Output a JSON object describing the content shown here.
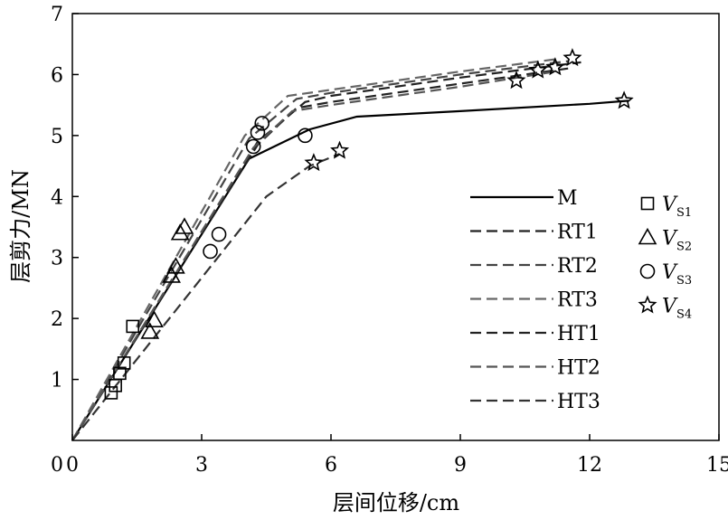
{
  "chart_data": {
    "type": "line",
    "xlabel": "层间位移/cm",
    "ylabel": "层剪力/MN",
    "xlim": [
      0,
      15
    ],
    "ylim": [
      0,
      7
    ],
    "xticks": [
      0,
      3,
      6,
      9,
      12,
      15
    ],
    "yticks": [
      1,
      2,
      3,
      4,
      5,
      6,
      7
    ],
    "y_origin_label": "0",
    "grid": false,
    "legend_position": "lower-right",
    "series": [
      {
        "name": "M",
        "style": "solid",
        "color": "#000000",
        "x": [
          0,
          4.1,
          5.5,
          6.6,
          9,
          12,
          12.9
        ],
        "y": [
          0,
          4.62,
          5.1,
          5.31,
          5.4,
          5.52,
          5.57
        ]
      },
      {
        "name": "RT1",
        "style": "dashed",
        "color": "#222222",
        "x": [
          0,
          4.3,
          5.4,
          6,
          9,
          11.8
        ],
        "y": [
          0,
          4.9,
          5.55,
          5.65,
          5.95,
          6.2
        ]
      },
      {
        "name": "RT2",
        "style": "dashed",
        "color": "#444444",
        "x": [
          0,
          4.1,
          5.2,
          6,
          9,
          11.5
        ],
        "y": [
          0,
          4.95,
          5.6,
          5.7,
          6.0,
          6.22
        ]
      },
      {
        "name": "RT3",
        "style": "dashed",
        "color": "#666666",
        "x": [
          0,
          4.0,
          5.0,
          6,
          9,
          11.2
        ],
        "y": [
          0,
          5.0,
          5.65,
          5.75,
          6.05,
          6.25
        ]
      },
      {
        "name": "HT1",
        "style": "dashed",
        "color": "#222222",
        "x": [
          0,
          4.3,
          5.2,
          6,
          9,
          11.5
        ],
        "y": [
          0,
          4.85,
          5.45,
          5.55,
          5.85,
          6.1
        ]
      },
      {
        "name": "HT2",
        "style": "dashed",
        "color": "#555555",
        "x": [
          0,
          4.2,
          5.1,
          6,
          9,
          11.2
        ],
        "y": [
          0,
          4.8,
          5.4,
          5.5,
          5.8,
          6.05
        ]
      },
      {
        "name": "HT3",
        "style": "dashed",
        "color": "#333333",
        "x": [
          0,
          4.5,
          5.5,
          6.2
        ],
        "y": [
          0,
          4.0,
          4.5,
          4.7
        ]
      }
    ],
    "markers": [
      {
        "name": "V_S1",
        "symbol": "square",
        "points": [
          [
            0.9,
            0.78
          ],
          [
            1.0,
            0.9
          ],
          [
            1.1,
            1.1
          ],
          [
            1.2,
            1.27
          ],
          [
            1.4,
            1.87
          ]
        ]
      },
      {
        "name": "V_S2",
        "symbol": "triangle",
        "points": [
          [
            1.8,
            1.78
          ],
          [
            1.9,
            1.97
          ],
          [
            2.3,
            2.7
          ],
          [
            2.4,
            2.85
          ],
          [
            2.5,
            3.4
          ],
          [
            2.6,
            3.5
          ]
        ]
      },
      {
        "name": "V_S3",
        "symbol": "circle",
        "points": [
          [
            3.2,
            3.1
          ],
          [
            3.4,
            3.38
          ],
          [
            4.2,
            4.82
          ],
          [
            4.3,
            5.05
          ],
          [
            4.4,
            5.2
          ],
          [
            5.4,
            5.0
          ]
        ]
      },
      {
        "name": "V_S4",
        "symbol": "star",
        "points": [
          [
            5.6,
            4.55
          ],
          [
            6.2,
            4.75
          ],
          [
            10.3,
            5.9
          ],
          [
            10.8,
            6.07
          ],
          [
            11.2,
            6.12
          ],
          [
            11.6,
            6.27
          ],
          [
            12.8,
            5.57
          ]
        ]
      }
    ],
    "legend": {
      "lines": [
        "M",
        "RT1",
        "RT2",
        "RT3",
        "HT1",
        "HT2",
        "HT3"
      ],
      "symbols": [
        {
          "main": "V",
          "sub": "S1",
          "symbol": "square"
        },
        {
          "main": "V",
          "sub": "S2",
          "symbol": "triangle"
        },
        {
          "main": "V",
          "sub": "S3",
          "symbol": "circle"
        },
        {
          "main": "V",
          "sub": "S4",
          "symbol": "star"
        }
      ]
    }
  }
}
